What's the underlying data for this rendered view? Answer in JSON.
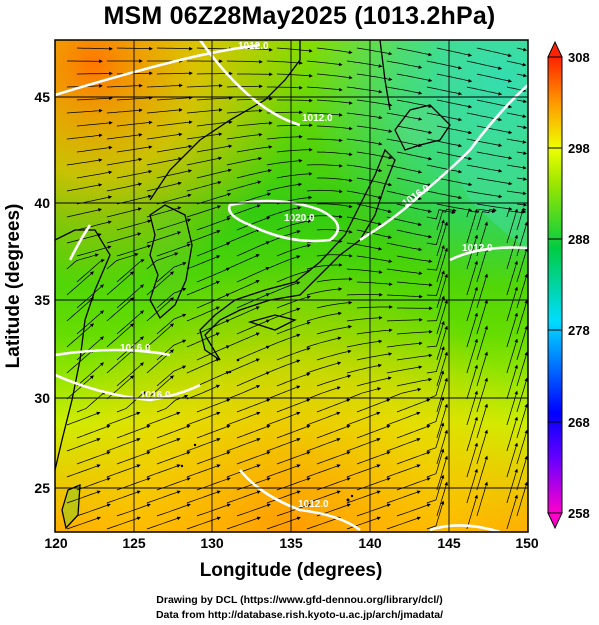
{
  "title": "MSM 06Z28May2025 (1013.2hPa)",
  "map": {
    "xlabel": "Longitude (degrees)",
    "ylabel": "Latitude  (degrees)",
    "x_ticks": [
      "120",
      "125",
      "130",
      "135",
      "140",
      "145",
      "150"
    ],
    "y_ticks": [
      "25",
      "30",
      "35",
      "40",
      "45"
    ],
    "lon_range": [
      120,
      150
    ],
    "lat_range": [
      22.4,
      47.6
    ],
    "contour_labels": [
      "1012.0",
      "1012.0",
      "1020.0",
      "1016.0",
      "1012.0",
      "1016.0",
      "1016.0",
      "1012.0"
    ]
  },
  "colorbar": {
    "tick_labels": [
      "308",
      "298",
      "288",
      "278",
      "268",
      "258"
    ],
    "min": 258,
    "max": 308,
    "colors": [
      "#ff00cc",
      "#0000ff",
      "#00ccff",
      "#00cc44",
      "#eeff00",
      "#ff9900",
      "#ff2200"
    ]
  },
  "credits": {
    "line1": "Drawing by DCL (https://www.gfd-dennou.org/library/dcl/)",
    "line2": "Data from http://database.rish.kyoto-u.ac.jp/arch/jmadata/"
  }
}
